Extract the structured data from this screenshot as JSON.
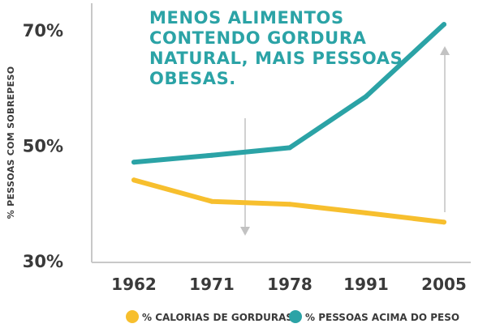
{
  "chart_data": {
    "type": "line",
    "title_lines": [
      "MENOS ALIMENTOS",
      "CONTENDO GORDURA",
      "NATURAL, MAIS PESSOAS",
      "OBESAS."
    ],
    "ylabel": "% PESSOAS COM SOBREPESO",
    "xlabel": "",
    "categories": [
      "1962",
      "1971",
      "1978",
      "1991",
      "2005"
    ],
    "y_ticks": [
      "30%",
      "50%",
      "70%"
    ],
    "y_tick_values": [
      30,
      50,
      70
    ],
    "ylim": [
      30,
      72
    ],
    "grid": false,
    "legend_position": "bottom",
    "series": [
      {
        "name": "% CALORIAS DE GORDURAS",
        "color": "#f7bf2e",
        "values": [
          44.0,
          40.3,
          39.8,
          38.3,
          36.7
        ]
      },
      {
        "name": "% PESSOAS ACIMA DO PESO",
        "color": "#2ba3a6",
        "values": [
          47.1,
          48.3,
          49.6,
          58.5,
          71.0
        ]
      }
    ],
    "colors": {
      "title": "#2ba3a6",
      "axis": "#c8c8c8",
      "arrow": "#c2c2c2",
      "text": "#3a3a3a"
    }
  }
}
